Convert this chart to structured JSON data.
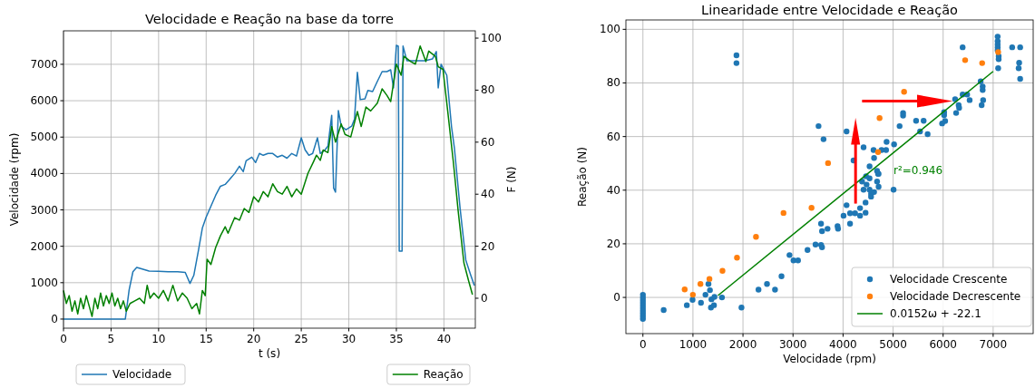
{
  "chart_data": [
    {
      "type": "line",
      "title": "Velocidade e Reação na base da torre",
      "xlabel": "t (s)",
      "ylabel": "Velocidade (rpm)",
      "y2label": "F (N)",
      "xlim": [
        0,
        43.3
      ],
      "xticks": [
        0,
        5,
        10,
        15,
        20,
        25,
        30,
        35,
        40
      ],
      "ylim": [
        -250,
        7920
      ],
      "yticks": [
        0,
        1000,
        2000,
        3000,
        4000,
        5000,
        6000,
        7000
      ],
      "y2lim": [
        -11.5,
        102.8
      ],
      "y2ticks": [
        0,
        20,
        40,
        60,
        80,
        100
      ],
      "grid": true,
      "legend": "bottom",
      "series": [
        {
          "name": "Velocidade",
          "color": "#1f77b4",
          "x": [
            0,
            6.5,
            6.9,
            7.3,
            7.7,
            8.2,
            9,
            10,
            11,
            12,
            12.8,
            13.3,
            13.7,
            14.2,
            14.6,
            15,
            15.5,
            16,
            16.5,
            17,
            17.5,
            18,
            18.5,
            18.9,
            19.2,
            19.8,
            20.2,
            20.6,
            21,
            21.5,
            22,
            22.5,
            23,
            23.5,
            24,
            24.5,
            25,
            25.4,
            25.8,
            26.2,
            26.7,
            27,
            27.5,
            27.8,
            28.2,
            28.4,
            28.6,
            28.9,
            29.2,
            29.7,
            30.3,
            30.6,
            30.9,
            31.2,
            31.7,
            32,
            32.5,
            33,
            33.5,
            34,
            34.4,
            34.7,
            35,
            35.2,
            35.3,
            35.6,
            35.7,
            36.1,
            37,
            38,
            38.8,
            39.2,
            39.4,
            39.7,
            40.3,
            40.8,
            41.1,
            41.7,
            42.3,
            42.8,
            43.2
          ],
          "values": [
            0,
            0,
            800,
            1300,
            1420,
            1380,
            1320,
            1310,
            1300,
            1300,
            1280,
            980,
            1200,
            1900,
            2500,
            2800,
            3100,
            3400,
            3650,
            3700,
            3850,
            4000,
            4200,
            4050,
            4350,
            4450,
            4300,
            4550,
            4500,
            4550,
            4550,
            4450,
            4500,
            4420,
            4550,
            4480,
            4980,
            4650,
            4500,
            4550,
            4980,
            4550,
            4650,
            4750,
            5600,
            3600,
            3490,
            5730,
            5300,
            5200,
            5300,
            5500,
            6780,
            6030,
            6050,
            6280,
            6250,
            6530,
            6800,
            6800,
            6850,
            6350,
            7520,
            7500,
            1870,
            1870,
            7500,
            7100,
            7100,
            7100,
            7150,
            7350,
            6350,
            7000,
            6700,
            5280,
            4700,
            3040,
            1620,
            1220,
            920
          ]
        },
        {
          "name": "Reação",
          "color": "#008000",
          "axis": "y2",
          "x": [
            0,
            0.3,
            0.6,
            0.9,
            1.2,
            1.5,
            1.8,
            2.1,
            2.4,
            2.7,
            3,
            3.3,
            3.6,
            3.9,
            4.2,
            4.5,
            4.8,
            5.1,
            5.4,
            5.7,
            6,
            6.3,
            6.6,
            7,
            7.5,
            8,
            8.5,
            8.8,
            9.1,
            9.5,
            10,
            10.5,
            11,
            11.5,
            12,
            12.5,
            13,
            13.5,
            14,
            14.3,
            14.6,
            14.9,
            15.1,
            15.5,
            16,
            16.5,
            17,
            17.3,
            18,
            18.5,
            19,
            19.5,
            20,
            20.5,
            21,
            21.5,
            22,
            22.5,
            23,
            23.5,
            24,
            24.5,
            25,
            25.7,
            26.3,
            26.6,
            27,
            27.3,
            27.8,
            28.2,
            28.6,
            29.2,
            29.6,
            30.2,
            30.9,
            31.3,
            31.8,
            32.3,
            33,
            33.5,
            34,
            34.4,
            35,
            35.5,
            35.8,
            36.5,
            37,
            37.5,
            38.1,
            38.4,
            39.1,
            39.4,
            39.9,
            40.4,
            41,
            41.5,
            42.1,
            42.6,
            43
          ],
          "values": [
            3,
            -2,
            1,
            -5,
            -1,
            -6,
            0,
            -4,
            1,
            -3,
            -7,
            0,
            -4,
            2,
            -3,
            1,
            -2,
            2,
            -3,
            0,
            -4,
            -1,
            -5,
            -2,
            -1,
            0,
            -2,
            5,
            0,
            2,
            0,
            3,
            -1,
            5,
            -1,
            2,
            0,
            -4,
            -2,
            -6,
            3,
            1,
            15,
            13,
            19.5,
            24,
            27.5,
            25,
            31,
            30,
            34.5,
            33,
            39,
            37,
            41,
            39,
            44,
            41,
            40,
            43,
            39,
            42,
            40,
            48,
            52.6,
            55,
            53,
            57,
            56,
            66,
            60,
            67,
            63,
            62,
            71.8,
            66,
            73.5,
            72,
            75,
            80.5,
            78,
            75.6,
            90,
            85.7,
            93,
            91,
            90,
            97,
            91,
            95,
            93,
            89,
            88,
            71.8,
            52,
            33.4,
            13.6,
            6.6,
            1.4
          ]
        }
      ]
    },
    {
      "type": "scatter",
      "title": "Linearidade entre Velocidade e Reação",
      "xlabel": "Velocidade (rpm)",
      "ylabel": "Reação (N)",
      "xlim": [
        -340,
        7800
      ],
      "xticks": [
        0,
        1000,
        2000,
        3000,
        4000,
        5000,
        6000,
        7000
      ],
      "ylim": [
        -13.5,
        103.5
      ],
      "yticks": [
        0,
        20,
        40,
        60,
        80,
        100
      ],
      "grid": true,
      "legend": "bottom right",
      "marker": "circle",
      "annotations": [
        "r²=0.946"
      ],
      "series": [
        {
          "name": "Velocidade Crescente",
          "color": "#1f77b4",
          "x": [
            0,
            0,
            0,
            0,
            0,
            0,
            0,
            0,
            0,
            0,
            415,
            878,
            992,
            1160,
            1250,
            1310,
            1340,
            1370,
            1360,
            1420,
            1430,
            1580,
            1970,
            2310,
            2480,
            2640,
            2770,
            2930,
            3010,
            3100,
            3290,
            3450,
            3560,
            3580,
            3560,
            3580,
            3690,
            3890,
            3900,
            4010,
            4140,
            4140,
            4070,
            4240,
            4340,
            4340,
            4450,
            4450,
            4410,
            4530,
            4560,
            4560,
            4620,
            4710,
            4680,
            4380,
            4470,
            4530,
            5010,
            4460,
            4700,
            1870,
            1870,
            3510,
            3610,
            4070,
            4410,
            4610,
            4770,
            4860,
            4870,
            5020,
            4620,
            4530,
            4210,
            4680,
            4710,
            5130,
            5200,
            5200,
            5460,
            5610,
            5540,
            5690,
            5980,
            6040,
            6020,
            6020,
            6260,
            6320,
            6310,
            6390,
            6480,
            6530,
            6240,
            6770,
            6800,
            6790,
            6790,
            6750,
            6390,
            7100,
            7090,
            7090,
            7090,
            7090,
            7090,
            7110,
            7110,
            7380,
            7540,
            7520,
            7510,
            7540
          ],
          "values": [
            1,
            0,
            -1,
            -2,
            -3,
            -4,
            -5,
            -6,
            -7,
            -8,
            -4.7,
            -2.9,
            -0.9,
            -2,
            1,
            5,
            2.7,
            -0.7,
            -3.8,
            -2.9,
            0.2,
            0,
            -3.8,
            2.9,
            5,
            2.9,
            7.9,
            15.8,
            13.8,
            13.8,
            17.7,
            19.7,
            19.6,
            18.7,
            27.5,
            24.7,
            25.6,
            26.6,
            25.6,
            30.5,
            31.4,
            27.5,
            34.4,
            31.4,
            33.3,
            30.5,
            31.6,
            35.4,
            40.2,
            40.2,
            38.7,
            37.6,
            39.3,
            41.3,
            43.2,
            43.2,
            42.1,
            44.4,
            40.2,
            45.2,
            46.1,
            90.3,
            87.4,
            63.9,
            59,
            61.9,
            56,
            55,
            55,
            55,
            58,
            57.1,
            52,
            48.9,
            51.1,
            47.2,
            46.1,
            63.9,
            68.8,
            67.8,
            65.9,
            65.9,
            61.9,
            60.9,
            64.9,
            65.8,
            68,
            69.1,
            68.8,
            70.7,
            71.7,
            75.7,
            75.7,
            73.6,
            73.9,
            71.7,
            73.6,
            77.4,
            78.7,
            80.6,
            93.3,
            85.5,
            97.3,
            95.6,
            94.4,
            93.3,
            92.2,
            90,
            88.9,
            93.3,
            93.3,
            87.5,
            85.5,
            81.5
          ]
        },
        {
          "name": "Velocidade Decrescente",
          "color": "#ff7f0e",
          "x": [
            835,
            998,
            1150,
            1330,
            1590,
            1880,
            2260,
            2810,
            3370,
            3700,
            4730,
            4700,
            5220,
            6440,
            6780,
            7100
          ],
          "values": [
            3,
            1,
            5,
            6.9,
            9.9,
            14.8,
            22.6,
            31.5,
            33.4,
            50.1,
            66.9,
            54.2,
            76.7,
            88.5,
            87.4,
            91.5
          ]
        },
        {
          "type": "line",
          "name": "0.0152ω + -22.1",
          "color": "#008000",
          "marker": "none",
          "x": [
            1500,
            7000
          ],
          "values": [
            0.7,
            84.3
          ]
        }
      ]
    }
  ]
}
